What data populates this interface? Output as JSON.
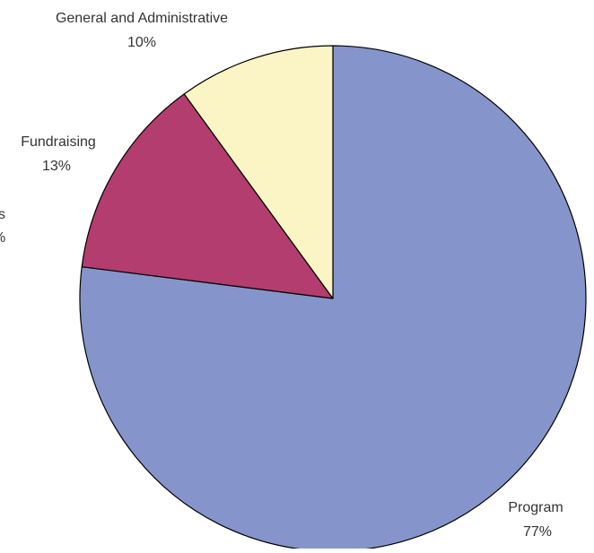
{
  "chart_data": {
    "type": "pie",
    "title": "",
    "slices": [
      {
        "label": "Program",
        "value": 77,
        "value_label": "77%",
        "color": "#8595cb"
      },
      {
        "label": "Fundraising",
        "value": 13,
        "value_label": "13%",
        "color": "#b33d6e"
      },
      {
        "label": "General and Administrative",
        "value": 10,
        "value_label": "10%",
        "color": "#fbf5c5"
      }
    ],
    "clipped_label": {
      "name_fragment": "s",
      "value_fragment": "%"
    },
    "legend": "none",
    "start_angle": "12 o'clock",
    "direction": "clockwise",
    "outline_color": "#000000"
  }
}
